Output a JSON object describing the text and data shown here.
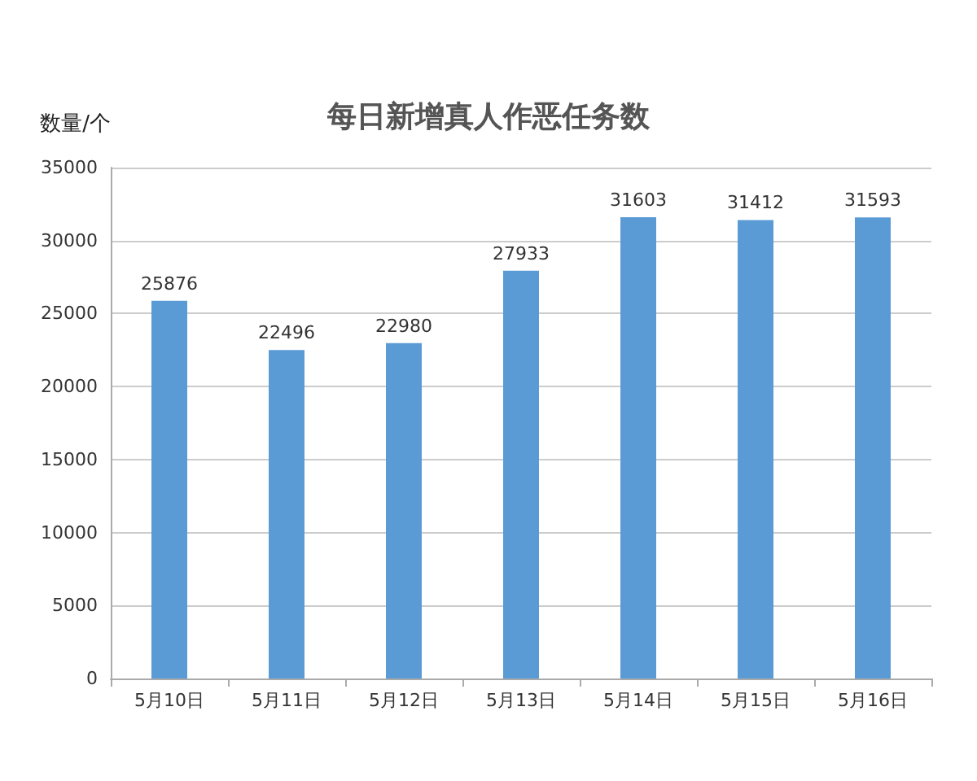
{
  "chart_data": {
    "type": "bar",
    "title": "每日新增真人作恶任务数",
    "ylabel": "数量/个",
    "categories": [
      "5月10日",
      "5月11日",
      "5月12日",
      "5月13日",
      "5月14日",
      "5月15日",
      "5月16日"
    ],
    "values": [
      25876,
      22496,
      22980,
      27933,
      31603,
      31412,
      31593
    ],
    "color": "#5b9bd5",
    "ylim": [
      0,
      35000
    ],
    "yticks": [
      0,
      5000,
      10000,
      15000,
      20000,
      25000,
      30000,
      35000
    ],
    "grid": "y",
    "data_labels": true
  }
}
